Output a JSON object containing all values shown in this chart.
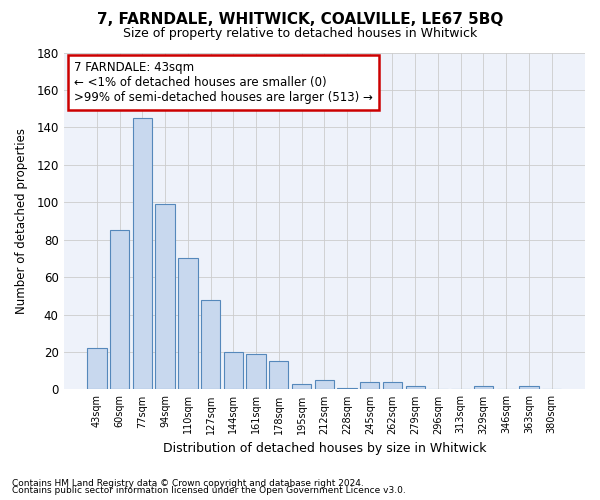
{
  "title": "7, FARNDALE, WHITWICK, COALVILLE, LE67 5BQ",
  "subtitle": "Size of property relative to detached houses in Whitwick",
  "xlabel": "Distribution of detached houses by size in Whitwick",
  "ylabel": "Number of detached properties",
  "bar_color": "#c8d8ee",
  "bar_edge_color": "#5588bb",
  "background_color": "#ffffff",
  "plot_bg_color": "#eef2fa",
  "categories": [
    "43sqm",
    "60sqm",
    "77sqm",
    "94sqm",
    "110sqm",
    "127sqm",
    "144sqm",
    "161sqm",
    "178sqm",
    "195sqm",
    "212sqm",
    "228sqm",
    "245sqm",
    "262sqm",
    "279sqm",
    "296sqm",
    "313sqm",
    "329sqm",
    "346sqm",
    "363sqm",
    "380sqm"
  ],
  "values": [
    22,
    85,
    145,
    99,
    70,
    48,
    20,
    19,
    15,
    3,
    5,
    1,
    4,
    4,
    2,
    0,
    0,
    2,
    0,
    2,
    0
  ],
  "ylim": [
    0,
    180
  ],
  "yticks": [
    0,
    20,
    40,
    60,
    80,
    100,
    120,
    140,
    160,
    180
  ],
  "annotation_line1": "7 FARNDALE: 43sqm",
  "annotation_line2": "← <1% of detached houses are smaller (0)",
  "annotation_line3": ">99% of semi-detached houses are larger (513) →",
  "footer_line1": "Contains HM Land Registry data © Crown copyright and database right 2024.",
  "footer_line2": "Contains public sector information licensed under the Open Government Licence v3.0.",
  "grid_color": "#cccccc",
  "ann_box_edge_color": "#cc0000"
}
